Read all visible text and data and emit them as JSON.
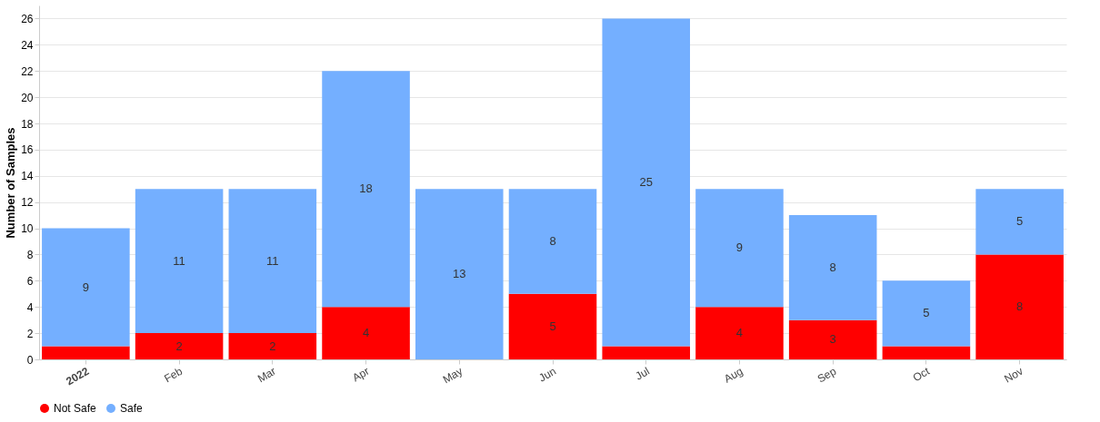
{
  "chart_data": {
    "type": "bar",
    "stacked": true,
    "ylabel": "Number of Samples",
    "categories": [
      "2022",
      "Feb",
      "Mar",
      "Apr",
      "May",
      "Jun",
      "Jul",
      "Aug",
      "Sep",
      "Oct",
      "Nov"
    ],
    "series": [
      {
        "name": "Not Safe",
        "color": "#ff0000",
        "values": [
          1,
          2,
          2,
          4,
          0,
          5,
          1,
          4,
          3,
          1,
          8
        ],
        "value_labels": [
          null,
          "2",
          "2",
          "4",
          null,
          "5",
          null,
          "4",
          "3",
          null,
          "8"
        ]
      },
      {
        "name": "Safe",
        "color": "#74afff",
        "values": [
          9,
          11,
          11,
          18,
          13,
          8,
          25,
          9,
          8,
          5,
          5
        ],
        "value_labels": [
          "9",
          "11",
          "11",
          "18",
          "13",
          "8",
          "25",
          "9",
          "8",
          "5",
          "5"
        ]
      }
    ],
    "ylim": [
      0,
      27
    ],
    "yticks": [
      0,
      2,
      4,
      6,
      8,
      10,
      12,
      14,
      16,
      18,
      20,
      22,
      24,
      26
    ],
    "grid": "y",
    "legend": "bottom"
  }
}
